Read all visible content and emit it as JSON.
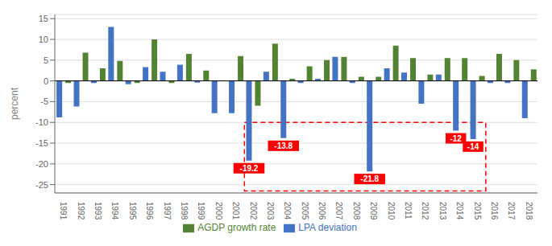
{
  "chart_data": {
    "type": "bar",
    "ylabel": "percent",
    "categories": [
      "1991",
      "1992",
      "1993",
      "1994",
      "1995",
      "1996",
      "1997",
      "1998",
      "1999",
      "2000",
      "2001",
      "2002",
      "2003",
      "2004",
      "2005",
      "2006",
      "2007",
      "2008",
      "2009",
      "2010",
      "2011",
      "2012",
      "2013",
      "2014",
      "2015",
      "2016",
      "2017",
      "2018"
    ],
    "series": [
      {
        "name": "LPA deviation",
        "color": "#4472C4",
        "values": [
          -8.8,
          -6.2,
          -0.5,
          13.0,
          -0.8,
          3.3,
          2.2,
          3.9,
          -0.4,
          -7.8,
          -7.8,
          -19.2,
          2.2,
          -13.8,
          -0.5,
          0.5,
          5.8,
          -0.5,
          -21.8,
          3.0,
          2.0,
          -5.5,
          1.5,
          -12.0,
          -14.0,
          -0.5,
          -0.5,
          -9.0
        ]
      },
      {
        "name": "AGDP growth rate",
        "color": "#548235",
        "values": [
          -0.5,
          6.8,
          3.0,
          4.8,
          -0.5,
          10.0,
          -0.5,
          6.5,
          2.5,
          0.0,
          6.0,
          -6.0,
          9.0,
          0.5,
          3.5,
          5.0,
          5.8,
          1.0,
          1.0,
          8.5,
          5.5,
          1.5,
          5.5,
          5.5,
          1.2,
          6.5,
          5.0,
          2.8
        ]
      }
    ],
    "ylim": [
      -27,
      16
    ],
    "yticks": [
      15,
      10,
      5,
      0,
      -5,
      -10,
      -15,
      -20,
      -25
    ],
    "grid": true,
    "legend": "bottom",
    "annotations": [
      {
        "category": "2002",
        "series": "LPA deviation",
        "label": "-19.2",
        "color": "red"
      },
      {
        "category": "2004",
        "series": "LPA deviation",
        "label": "-13.8",
        "color": "red"
      },
      {
        "category": "2009",
        "series": "LPA deviation",
        "label": "-21.8",
        "color": "red"
      },
      {
        "category": "2014",
        "series": "LPA deviation",
        "label": "-12",
        "color": "red"
      },
      {
        "category": "2015",
        "series": "LPA deviation",
        "label": "-14",
        "color": "red"
      }
    ],
    "highlight": {
      "x1": "2002",
      "x2": "2015",
      "y1": -26.5,
      "y2": -10,
      "color": "red",
      "line_style": "dashed"
    }
  }
}
